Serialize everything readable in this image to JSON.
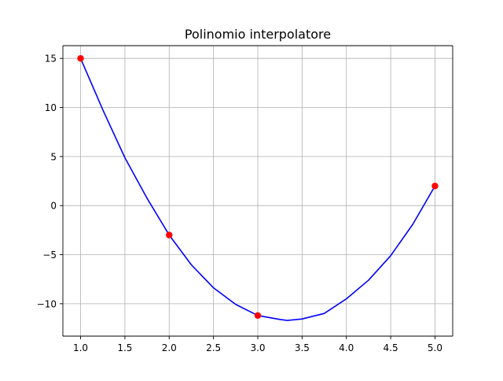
{
  "chart_data": {
    "type": "line",
    "title": "Polinomio interpolatore",
    "xlabel": "",
    "ylabel": "",
    "xlim": [
      0.8,
      5.2
    ],
    "ylim": [
      -13.3,
      16.3
    ],
    "xticks": [
      1.0,
      1.5,
      2.0,
      2.5,
      3.0,
      3.5,
      4.0,
      4.5,
      5.0
    ],
    "xtick_labels": [
      "1.0",
      "1.5",
      "2.0",
      "2.5",
      "3.0",
      "3.5",
      "4.0",
      "4.5",
      "5.0"
    ],
    "yticks": [
      15,
      10,
      5,
      0,
      -5,
      -10
    ],
    "ytick_labels": [
      "15",
      "10",
      "5",
      "0",
      "−5",
      "−10"
    ],
    "grid": true,
    "legend": "none",
    "series": [
      {
        "kind": "line",
        "color": "#0000ff",
        "x": [
          1.0,
          1.25,
          1.5,
          1.75,
          2.0,
          2.25,
          2.5,
          2.75,
          3.0,
          3.25,
          3.333,
          3.5,
          3.75,
          4.0,
          4.25,
          4.5,
          4.75,
          5.0
        ],
        "y": [
          15.0,
          9.78,
          4.88,
          0.75,
          -3.0,
          -6.03,
          -8.38,
          -10.06,
          -11.2,
          -11.6,
          -11.7,
          -11.55,
          -10.99,
          -9.5,
          -7.6,
          -5.1,
          -1.9,
          2.0
        ]
      },
      {
        "kind": "scatter",
        "color": "#ff0000",
        "x": [
          1,
          2,
          3,
          5
        ],
        "y": [
          15,
          -3,
          -11.2,
          2
        ]
      }
    ]
  }
}
